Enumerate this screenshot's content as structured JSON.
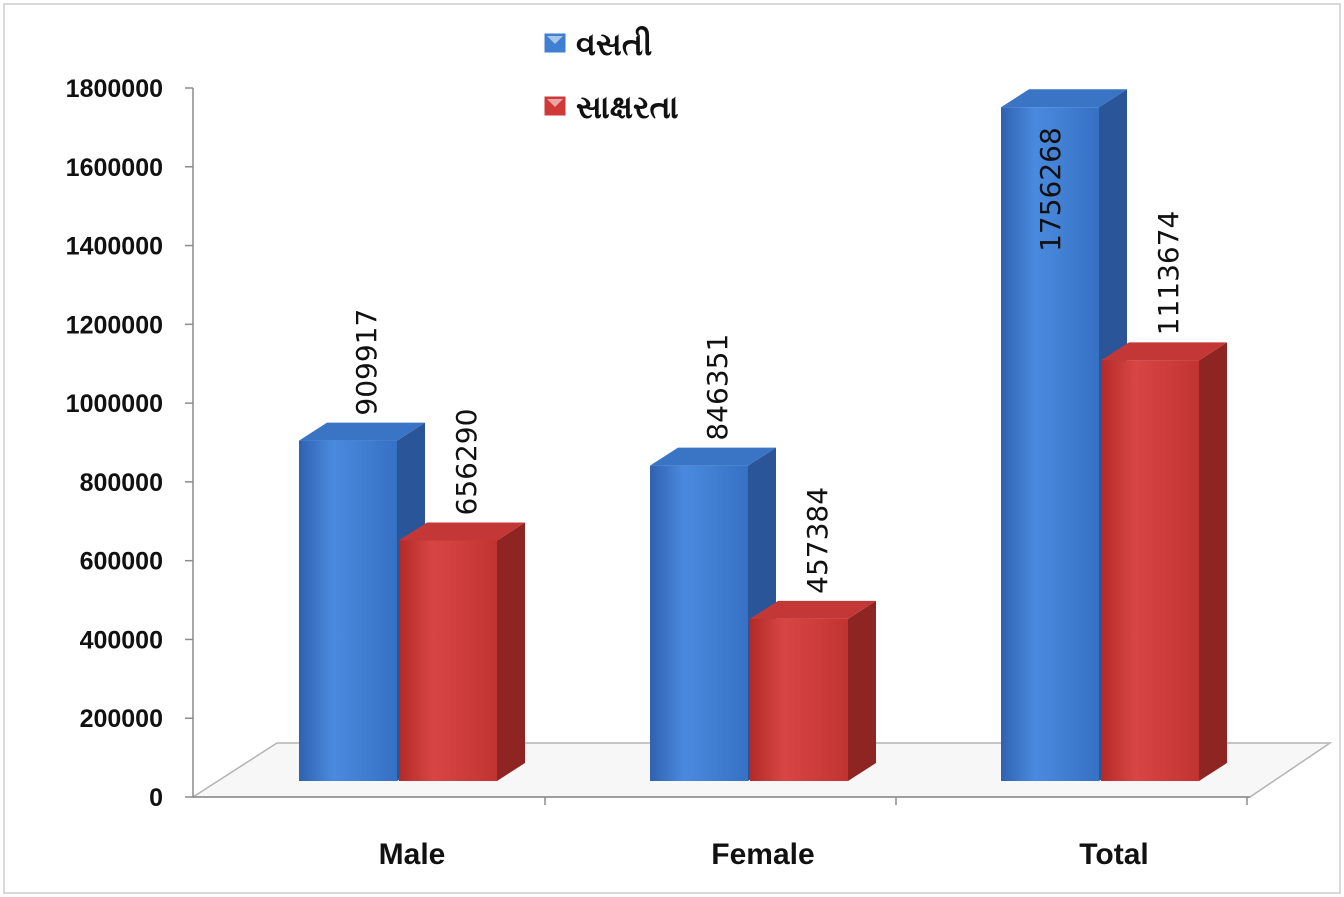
{
  "chart_data": {
    "type": "bar",
    "categories": [
      "Male",
      "Female",
      "Total"
    ],
    "series": [
      {
        "name": "વસતી",
        "color": "#3f7fd1",
        "values": [
          909917,
          846351,
          1756268
        ]
      },
      {
        "name": "સાક્ષરતા",
        "color": "#cf3a38",
        "values": [
          656290,
          457384,
          1113674
        ]
      }
    ],
    "data_labels": [
      [
        "909917",
        "846351",
        "1756268"
      ],
      [
        "656290",
        "457384",
        "1113674"
      ]
    ],
    "ylim": [
      0,
      1800000
    ],
    "yticks": [
      "0",
      "200000",
      "400000",
      "600000",
      "800000",
      "1000000",
      "1200000",
      "1400000",
      "1600000",
      "1800000"
    ],
    "legend_position": "top-center",
    "style": "3d-clustered-bar",
    "grid": false
  }
}
